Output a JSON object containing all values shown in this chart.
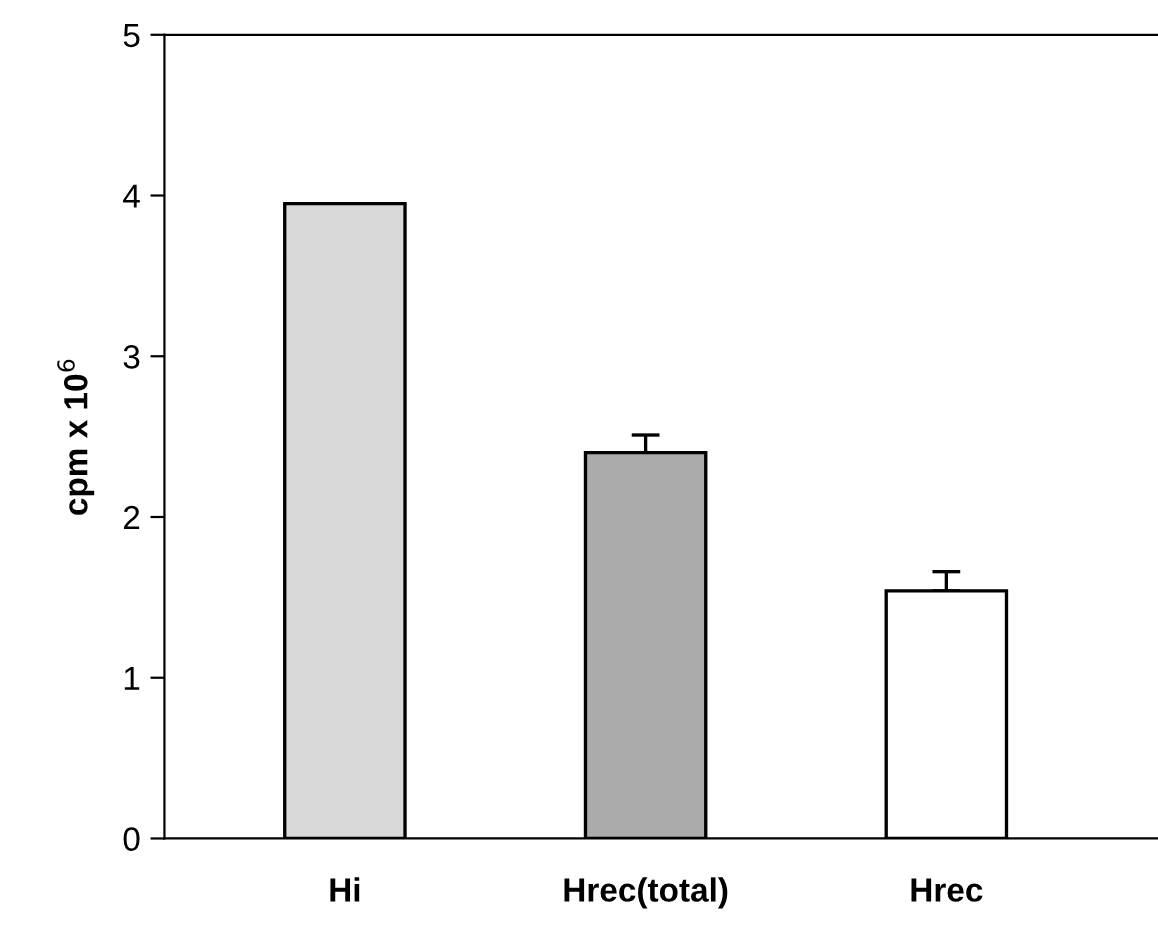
{
  "chart_data": {
    "type": "bar",
    "ylabel": "cpm x 10$^{6}$",
    "categories": [
      "Hi",
      "Hrec(total)",
      "Hrec"
    ],
    "values": [
      3.95,
      2.4,
      1.54
    ],
    "colors": [
      "#d9d9d9",
      "#ababab",
      "#ffffff"
    ],
    "errors": [
      null,
      [
        2.4,
        2.51
      ],
      [
        1.54,
        1.66
      ]
    ],
    "ylim": [
      0,
      5
    ],
    "yticks": [
      0,
      1,
      2,
      3,
      4,
      5
    ],
    "grid": false,
    "legend": false
  }
}
